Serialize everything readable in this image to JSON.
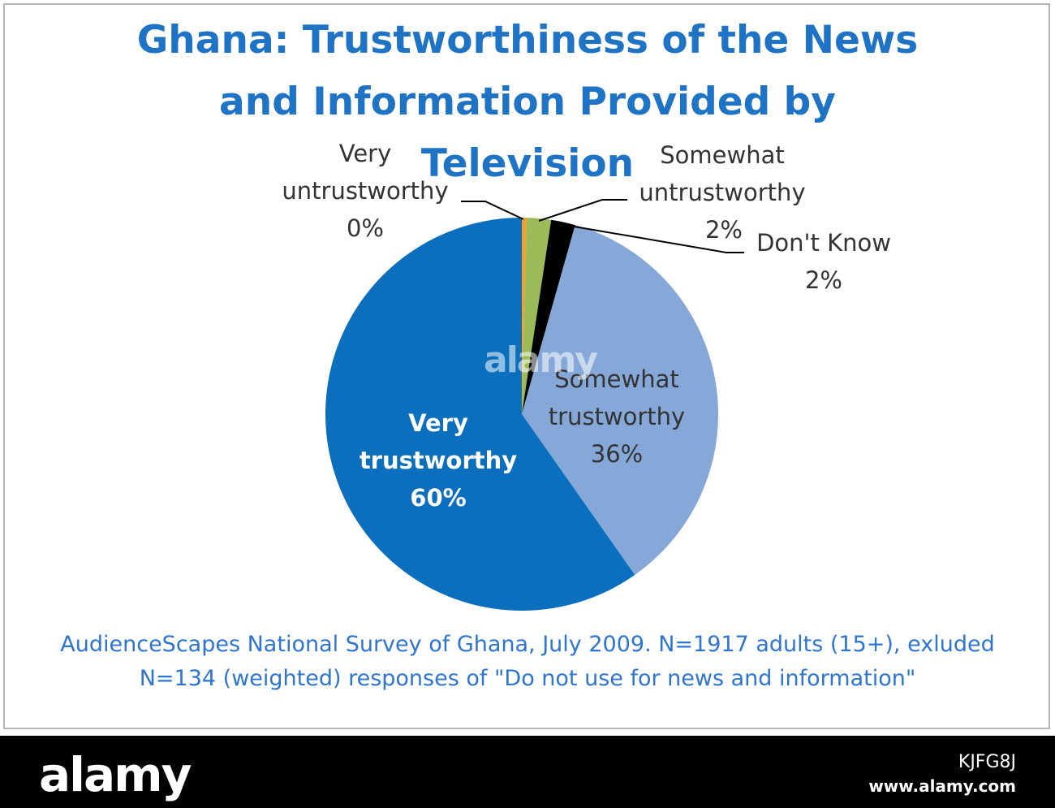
{
  "chart_data": {
    "type": "pie",
    "title_lines": [
      "Ghana: Trustworthiness of the News",
      "and Information Provided by",
      "Television"
    ],
    "slices": [
      {
        "label_lines": [
          "Very",
          "untrustworthy",
          "0%"
        ],
        "value": 0.4,
        "color": "#f0a030"
      },
      {
        "label_lines": [
          "Somewhat",
          "untrustworthy",
          "2%"
        ],
        "value": 2,
        "color": "#9bbb59"
      },
      {
        "label_lines": [
          "Don't Know",
          "2%"
        ],
        "value": 2,
        "color": "#000000"
      },
      {
        "label_lines": [
          "Somewhat",
          "trustworthy",
          "36%"
        ],
        "value": 36,
        "color": "#86a8d8"
      },
      {
        "label_lines": [
          "Very",
          "trustworthy",
          "60%"
        ],
        "value": 60,
        "color": "#0b6fbd"
      }
    ],
    "note_lines": [
      "AudienceScapes National Survey of Ghana, July 2009. N=1917 adults (15+), exluded",
      "N=134 (weighted) responses of \"Do not use for news and information\""
    ]
  },
  "watermark": {
    "logo": "alamy",
    "image_id": "KJFG8J",
    "url": "www.alamy.com"
  }
}
